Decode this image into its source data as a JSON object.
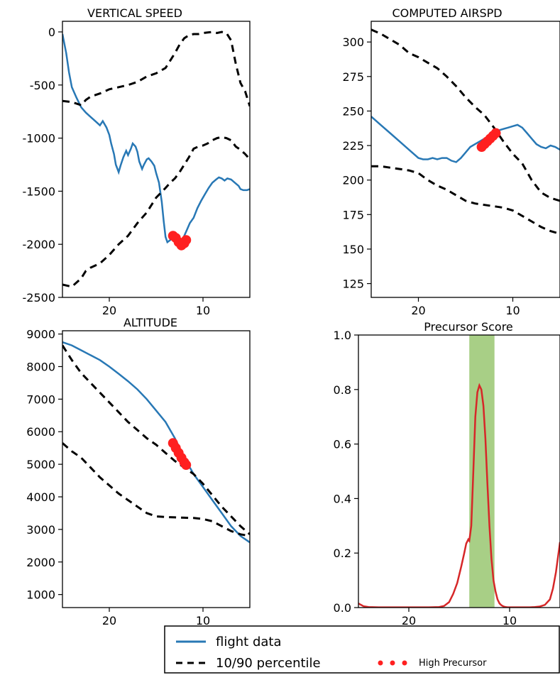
{
  "colors": {
    "flight": "#2878b5",
    "percentile": "#000000",
    "precursor_dots": "#ff2020",
    "score_line": "#d62728",
    "score_fill_edge": "#a0522d",
    "highlight_band": "#a8cf86"
  },
  "legend": {
    "flight_label": "flight data",
    "percentile_label": "10/90 percentile",
    "precursor_label": "High Precursor"
  },
  "chart_data": [
    {
      "id": "vs",
      "type": "line",
      "title": "VERTICAL  SPEED",
      "xlim": [
        25,
        5
      ],
      "ylim": [
        -2500,
        100
      ],
      "xticks": [
        20,
        10
      ],
      "yticks": [
        0,
        -500,
        -1000,
        -1500,
        -2000,
        -2500
      ],
      "series": [
        {
          "name": "flight data",
          "style": "flight",
          "x": [
            25,
            24.6,
            24.3,
            24,
            23.5,
            23,
            22.5,
            22,
            21.5,
            21,
            20.7,
            20.3,
            20,
            19.8,
            19.5,
            19.3,
            19,
            18.8,
            18.5,
            18.2,
            18,
            17.7,
            17.5,
            17.2,
            17,
            16.8,
            16.5,
            16.3,
            16,
            15.8,
            15.5,
            15.2,
            15,
            14.7,
            14.4,
            14.2,
            14,
            13.8,
            13.5,
            13.2,
            13,
            12.7,
            12.5,
            12.3,
            12,
            11.7,
            11.4,
            11,
            10.6,
            10.2,
            9.8,
            9.4,
            9,
            8.6,
            8.3,
            8,
            7.7,
            7.4,
            7,
            6.6,
            6.2,
            6,
            5.7,
            5.3,
            5
          ],
          "y": [
            -20,
            -200,
            -380,
            -520,
            -620,
            -710,
            -760,
            -800,
            -840,
            -880,
            -840,
            -900,
            -970,
            -1050,
            -1150,
            -1250,
            -1320,
            -1260,
            -1180,
            -1120,
            -1160,
            -1100,
            -1050,
            -1080,
            -1130,
            -1220,
            -1290,
            -1250,
            -1200,
            -1190,
            -1220,
            -1260,
            -1330,
            -1420,
            -1600,
            -1780,
            -1930,
            -1980,
            -1960,
            -1920,
            -1900,
            -1960,
            -2000,
            -1980,
            -1920,
            -1860,
            -1800,
            -1750,
            -1660,
            -1590,
            -1530,
            -1470,
            -1420,
            -1390,
            -1370,
            -1380,
            -1400,
            -1380,
            -1390,
            -1420,
            -1450,
            -1480,
            -1490,
            -1490,
            -1480
          ]
        },
        {
          "name": "10/90 percentile (upper)",
          "style": "percentile",
          "x": [
            25,
            24,
            23,
            22.5,
            22,
            21,
            20,
            19,
            18,
            17,
            16,
            15,
            14,
            13.5,
            13,
            12.5,
            12,
            11.5,
            11,
            10.5,
            10,
            9.5,
            9,
            8.5,
            8,
            7.5,
            7,
            6.5,
            6,
            5.5,
            5
          ],
          "y": [
            -650,
            -660,
            -690,
            -640,
            -610,
            -580,
            -540,
            -520,
            -500,
            -470,
            -420,
            -390,
            -340,
            -270,
            -200,
            -120,
            -60,
            -30,
            -20,
            -20,
            -10,
            -5,
            0,
            -10,
            0,
            -10,
            -80,
            -300,
            -480,
            -560,
            -700
          ]
        },
        {
          "name": "10/90 percentile (lower)",
          "style": "percentile",
          "x": [
            25,
            24,
            23,
            22.5,
            22,
            21,
            20,
            19,
            18,
            17,
            16,
            15,
            14,
            13.5,
            13,
            12.5,
            12,
            11.5,
            11,
            10.5,
            10,
            9.5,
            9,
            8.5,
            8,
            7.5,
            7,
            6.5,
            6,
            5.5,
            5
          ],
          "y": [
            -2380,
            -2400,
            -2320,
            -2250,
            -2220,
            -2180,
            -2100,
            -2000,
            -1920,
            -1800,
            -1700,
            -1560,
            -1470,
            -1420,
            -1380,
            -1320,
            -1250,
            -1180,
            -1100,
            -1080,
            -1070,
            -1050,
            -1020,
            -1000,
            -990,
            -1000,
            -1020,
            -1080,
            -1110,
            -1150,
            -1200
          ]
        }
      ],
      "highlight_points": {
        "name": "High Precursor",
        "x": [
          13.2,
          12.9,
          12.6,
          12.3,
          12.0,
          11.8
        ],
        "y": [
          -1920,
          -1940,
          -1980,
          -2010,
          -1990,
          -1960
        ]
      }
    },
    {
      "id": "as",
      "type": "line",
      "title": "COMPUTED AIRSPD",
      "xlim": [
        25,
        5
      ],
      "ylim": [
        115,
        315
      ],
      "xticks": [
        20,
        10
      ],
      "yticks": [
        300,
        275,
        250,
        225,
        200,
        175,
        150,
        125
      ],
      "series": [
        {
          "name": "flight data",
          "style": "flight",
          "x": [
            25,
            24,
            23,
            22,
            21,
            20,
            19.5,
            19,
            18.5,
            18,
            17.5,
            17,
            16.5,
            16,
            15.5,
            15,
            14.5,
            14,
            13.5,
            13,
            12.5,
            12,
            11.5,
            11,
            10.5,
            10,
            9.5,
            9,
            8.5,
            8,
            7.5,
            7,
            6.5,
            6,
            5.5,
            5
          ],
          "y": [
            246,
            240,
            234,
            228,
            222,
            216,
            215,
            215,
            216,
            215,
            216,
            216,
            214,
            213,
            216,
            220,
            224,
            226,
            228,
            230,
            232,
            234,
            236,
            237,
            238,
            239,
            240,
            238,
            234,
            230,
            226,
            224,
            223,
            225,
            224,
            222
          ]
        },
        {
          "name": "10/90 percentile (upper)",
          "style": "percentile",
          "x": [
            25,
            24,
            23,
            22,
            21,
            20,
            19,
            18,
            17,
            16,
            15,
            14,
            13,
            12,
            11,
            10,
            9,
            8,
            7,
            6,
            5
          ],
          "y": [
            309,
            306,
            302,
            298,
            292,
            289,
            285,
            281,
            275,
            268,
            260,
            253,
            247,
            238,
            228,
            219,
            212,
            200,
            191,
            187,
            185
          ]
        },
        {
          "name": "10/90 percentile (lower)",
          "style": "percentile",
          "x": [
            25,
            24,
            23,
            22,
            21,
            20,
            19,
            18,
            17,
            16,
            15,
            14,
            13,
            12,
            11,
            10,
            9,
            8,
            7,
            6,
            5
          ],
          "y": [
            210,
            210,
            209,
            208,
            207,
            205,
            200,
            196,
            193,
            189,
            185,
            183,
            182,
            181,
            180,
            178,
            174,
            170,
            166,
            163,
            161
          ]
        }
      ],
      "highlight_points": {
        "name": "High Precursor",
        "x": [
          13.3,
          13.0,
          12.7,
          12.4,
          12.1,
          11.8
        ],
        "y": [
          224,
          226,
          228,
          230,
          232,
          234
        ]
      }
    },
    {
      "id": "alt",
      "type": "line",
      "title": "ALTITUDE",
      "xlim": [
        25,
        5
      ],
      "ylim": [
        600,
        9100
      ],
      "xticks": [
        20,
        10
      ],
      "yticks": [
        9000,
        8000,
        7000,
        6000,
        5000,
        4000,
        3000,
        2000,
        1000
      ],
      "series": [
        {
          "name": "flight data",
          "style": "flight",
          "x": [
            25,
            24,
            23,
            22,
            21,
            20,
            19,
            18,
            17,
            16,
            15,
            14,
            13,
            12,
            11,
            10,
            9,
            8,
            7,
            6,
            5
          ],
          "y": [
            8750,
            8650,
            8500,
            8350,
            8200,
            8000,
            7780,
            7550,
            7300,
            7000,
            6650,
            6300,
            5800,
            5200,
            4700,
            4300,
            3900,
            3500,
            3100,
            2800,
            2600
          ]
        },
        {
          "name": "10/90 percentile (upper)",
          "style": "percentile",
          "x": [
            25,
            24,
            23,
            22,
            21,
            20,
            19,
            18,
            17,
            16,
            15,
            14,
            13,
            12,
            11,
            10,
            9,
            8,
            7,
            6,
            5
          ],
          "y": [
            8650,
            8200,
            7800,
            7500,
            7200,
            6900,
            6600,
            6300,
            6050,
            5800,
            5600,
            5350,
            5100,
            4900,
            4700,
            4400,
            4050,
            3700,
            3400,
            3100,
            2850
          ]
        },
        {
          "name": "10/90 percentile (lower)",
          "style": "percentile",
          "x": [
            25,
            24,
            23,
            22,
            21,
            20,
            19,
            18,
            17,
            16,
            15,
            14,
            13,
            12,
            11,
            10,
            9,
            8,
            7,
            6,
            5
          ],
          "y": [
            5650,
            5400,
            5200,
            4900,
            4600,
            4350,
            4100,
            3900,
            3700,
            3500,
            3400,
            3380,
            3370,
            3360,
            3350,
            3320,
            3250,
            3100,
            2950,
            2850,
            2800
          ]
        }
      ],
      "highlight_points": {
        "name": "High Precursor",
        "x": [
          13.2,
          12.9,
          12.6,
          12.3,
          12.0,
          11.8
        ],
        "y": [
          5650,
          5500,
          5350,
          5200,
          5060,
          4980
        ]
      }
    },
    {
      "id": "ps",
      "type": "area",
      "title": "Precursor Score",
      "xlim": [
        25,
        5
      ],
      "ylim": [
        0,
        1.0
      ],
      "xticks": [
        20,
        10
      ],
      "yticks": [
        1.0,
        0.8,
        0.6,
        0.4,
        0.2,
        0.0
      ],
      "highlight_band": [
        14,
        11.5
      ],
      "series": [
        {
          "name": "Precursor Score",
          "style": "score",
          "x": [
            25,
            24.5,
            24,
            23,
            22,
            21,
            20,
            19,
            18,
            17,
            16.5,
            16,
            15.6,
            15.2,
            14.8,
            14.5,
            14.3,
            14.1,
            14,
            13.8,
            13.6,
            13.4,
            13.2,
            13,
            12.8,
            12.6,
            12.4,
            12.2,
            12,
            11.8,
            11.6,
            11.4,
            11.2,
            11,
            10.8,
            10.6,
            10.4,
            10.2,
            10,
            9.5,
            9,
            8.5,
            8,
            7.5,
            7,
            6.5,
            6,
            5.7,
            5.4,
            5
          ],
          "y": [
            0.015,
            0.005,
            0.002,
            0.001,
            0.001,
            0.001,
            0.001,
            0.001,
            0.001,
            0.002,
            0.006,
            0.02,
            0.05,
            0.09,
            0.15,
            0.2,
            0.235,
            0.25,
            0.245,
            0.3,
            0.5,
            0.7,
            0.79,
            0.815,
            0.8,
            0.74,
            0.62,
            0.45,
            0.3,
            0.18,
            0.1,
            0.06,
            0.03,
            0.015,
            0.008,
            0.004,
            0.002,
            0.001,
            0.001,
            0.001,
            0.001,
            0.001,
            0.001,
            0.002,
            0.004,
            0.01,
            0.03,
            0.07,
            0.13,
            0.24
          ]
        }
      ]
    }
  ]
}
